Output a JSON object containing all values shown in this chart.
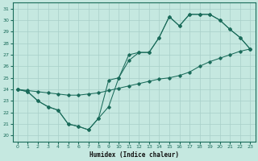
{
  "xlabel": "Humidex (Indice chaleur)",
  "bg_color": "#c5e8e0",
  "line_color": "#1a6b5a",
  "grid_color": "#a8cfc8",
  "xlim": [
    -0.5,
    23.5
  ],
  "ylim": [
    19.5,
    31.5
  ],
  "xticks": [
    0,
    1,
    2,
    3,
    4,
    5,
    6,
    7,
    8,
    9,
    10,
    11,
    12,
    13,
    14,
    15,
    16,
    17,
    18,
    19,
    20,
    21,
    22,
    23
  ],
  "yticks": [
    20,
    21,
    22,
    23,
    24,
    25,
    26,
    27,
    28,
    29,
    30,
    31
  ],
  "line1_x": [
    0,
    1,
    2,
    3,
    4,
    5,
    6,
    7,
    8,
    9,
    10,
    11,
    12,
    13,
    14,
    15,
    16,
    17,
    18,
    19,
    20,
    21,
    22,
    23
  ],
  "line1_y": [
    24.0,
    23.8,
    23.0,
    22.5,
    22.2,
    21.0,
    20.8,
    20.5,
    21.5,
    22.5,
    25.0,
    27.0,
    27.2,
    27.2,
    28.5,
    30.3,
    29.5,
    30.5,
    30.5,
    30.5,
    30.0,
    29.2,
    28.5,
    27.5
  ],
  "line2_x": [
    0,
    1,
    2,
    3,
    4,
    5,
    6,
    7,
    8,
    9,
    10,
    11,
    12,
    13,
    14,
    15,
    16,
    17,
    18,
    19,
    20,
    21,
    22,
    23
  ],
  "line2_y": [
    24.0,
    23.9,
    23.8,
    23.7,
    23.6,
    23.5,
    23.5,
    23.6,
    23.7,
    23.9,
    24.1,
    24.3,
    24.5,
    24.7,
    24.9,
    25.0,
    25.2,
    25.5,
    26.0,
    26.4,
    26.7,
    27.0,
    27.3,
    27.5
  ],
  "line3_x": [
    0,
    1,
    2,
    3,
    4,
    5,
    6,
    7,
    8,
    9,
    10,
    11,
    12,
    13,
    14,
    15,
    16,
    17,
    18,
    19,
    20,
    21,
    22,
    23
  ],
  "line3_y": [
    24.0,
    23.8,
    23.0,
    22.5,
    22.2,
    21.0,
    20.8,
    20.5,
    21.5,
    24.8,
    25.0,
    26.5,
    27.2,
    27.2,
    28.5,
    30.3,
    29.5,
    30.5,
    30.5,
    30.5,
    30.0,
    29.2,
    28.5,
    27.5
  ]
}
